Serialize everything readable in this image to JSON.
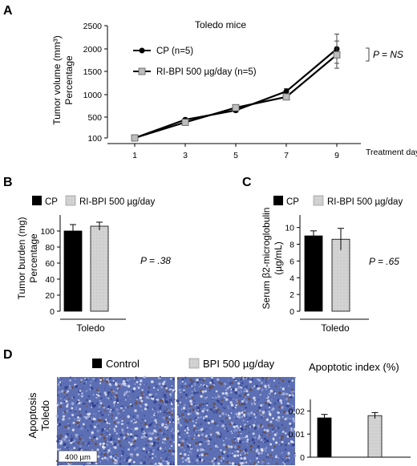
{
  "panels": {
    "A": {
      "letter": "A",
      "title": "Toledo mice",
      "ylabel_line1": "Tumor volume (mm³)",
      "ylabel_line2": "Percentage",
      "xlabel": "Treatment day",
      "p_value": "P = NS",
      "legend": [
        "CP (n=5)",
        "RI-BPI 500 µg/day (n=5)"
      ]
    },
    "B": {
      "letter": "B",
      "ylabel_line1": "Tumor burden (mg)",
      "ylabel_line2": "Percentage",
      "xlabel": "Toledo",
      "p_value": "P = .38",
      "legend": [
        "CP",
        "RI-BPI 500 µg/day"
      ]
    },
    "C": {
      "letter": "C",
      "ylabel_line1": "Serum β2-microglobulin",
      "ylabel_line2": "(µg/mL)",
      "xlabel": "Toledo",
      "p_value": "P = .65",
      "legend": [
        "CP",
        "RI-BPI 500 µg/day"
      ]
    },
    "D": {
      "letter": "D",
      "row_label_line1": "Apoptosis",
      "row_label_line2": "Toledo",
      "legend": [
        "Control",
        "BPI 500 µg/day"
      ],
      "index_title": "Apoptotic index (%)",
      "scale_bar": "400 µm"
    }
  },
  "colors": {
    "black": "#000000",
    "gray": "#d3d3d3",
    "micro_bg": "#5c6fb4"
  },
  "chart_data": [
    {
      "id": "A",
      "type": "line",
      "title": "Toledo mice",
      "xlabel": "Treatment day",
      "ylabel": "Tumor volume (mm³) Percentage",
      "x": [
        1,
        3,
        5,
        7,
        9
      ],
      "xticks": [
        "1",
        "3",
        "5",
        "7",
        "9"
      ],
      "yticks": [
        100,
        500,
        1000,
        1500,
        2000,
        2500
      ],
      "ylim": [
        100,
        2500
      ],
      "series": [
        {
          "name": "CP (n=5)",
          "marker": "circle",
          "color": "#000000",
          "values": [
            100,
            450,
            650,
            1070,
            2000
          ],
          "errors": [
            10,
            30,
            40,
            60,
            320
          ]
        },
        {
          "name": "RI-BPI 500 µg/day (n=5)",
          "marker": "square",
          "color": "#bdbdbd",
          "values": [
            100,
            400,
            710,
            950,
            1870
          ],
          "errors": [
            10,
            30,
            40,
            50,
            300
          ]
        }
      ]
    },
    {
      "id": "B",
      "type": "bar",
      "xlabel": "Toledo",
      "ylabel": "Tumor burden (mg) Percentage",
      "yticks": [
        0,
        20,
        40,
        60,
        80,
        100
      ],
      "ylim": [
        0,
        120
      ],
      "series": [
        {
          "name": "CP",
          "color": "#000000",
          "values": [
            100
          ],
          "errors": [
            8
          ]
        },
        {
          "name": "RI-BPI 500 µg/day",
          "color": "#d3d3d3",
          "values": [
            106
          ],
          "errors": [
            5
          ]
        }
      ]
    },
    {
      "id": "C",
      "type": "bar",
      "xlabel": "Toledo",
      "ylabel": "Serum β2-microglobulin (µg/mL)",
      "yticks": [
        0,
        2,
        4,
        6,
        8,
        10
      ],
      "ylim": [
        0,
        11.5
      ],
      "series": [
        {
          "name": "CP",
          "color": "#000000",
          "values": [
            9.0
          ],
          "errors": [
            0.6
          ]
        },
        {
          "name": "RI-BPI 500 µg/day",
          "color": "#d3d3d3",
          "values": [
            8.6
          ],
          "errors": [
            1.3
          ]
        }
      ]
    },
    {
      "id": "D",
      "type": "bar",
      "title": "Apoptotic index (%)",
      "yticks": [
        0,
        0.01,
        0.02
      ],
      "ytick_labels": [
        "0",
        "0.01",
        "0.02"
      ],
      "ylim": [
        0,
        0.025
      ],
      "series": [
        {
          "name": "Control",
          "color": "#000000",
          "values": [
            0.017
          ],
          "errors": [
            0.0015
          ]
        },
        {
          "name": "BPI 500 µg/day",
          "color": "#d3d3d3",
          "values": [
            0.018
          ],
          "errors": [
            0.0013
          ]
        }
      ]
    }
  ]
}
